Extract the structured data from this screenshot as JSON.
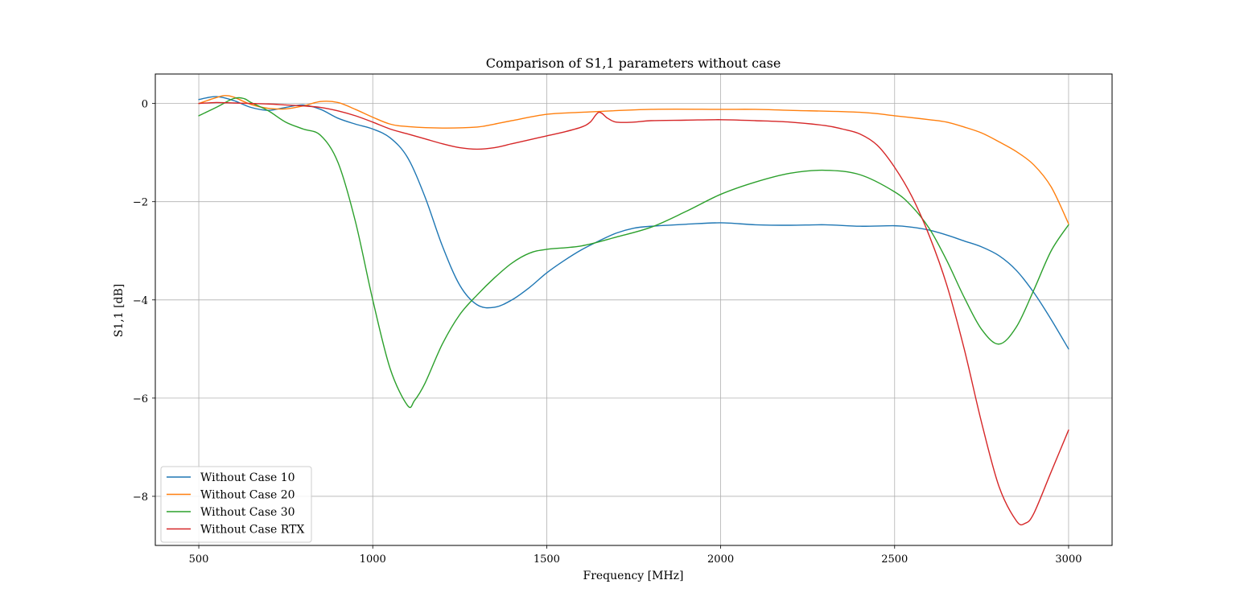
{
  "chart_data": {
    "type": "line",
    "title": "Comparison of S1,1 parameters without case",
    "xlabel": "Frequency [MHz]",
    "ylabel": "S1,1 [dB]",
    "xlim": [
      375,
      3125
    ],
    "ylim": [
      -9.0,
      0.6
    ],
    "xticks": [
      500,
      1000,
      1500,
      2000,
      2500,
      3000
    ],
    "yticks": [
      0,
      -2,
      -4,
      -6,
      -8
    ],
    "ytick_labels": [
      "0",
      "−2",
      "−4",
      "−6",
      "−8"
    ],
    "grid": true,
    "legend_position": "lower-left",
    "series": [
      {
        "name": "Without Case 10",
        "color": "#1f77b4",
        "x": [
          500,
          550,
          600,
          650,
          700,
          750,
          800,
          850,
          900,
          950,
          1000,
          1050,
          1100,
          1150,
          1200,
          1250,
          1300,
          1350,
          1400,
          1450,
          1500,
          1550,
          1600,
          1650,
          1700,
          1750,
          1800,
          1900,
          2000,
          2100,
          2200,
          2300,
          2400,
          2500,
          2550,
          2600,
          2650,
          2700,
          2750,
          2800,
          2850,
          2900,
          2950,
          3000
        ],
        "y": [
          0.08,
          0.14,
          0.06,
          -0.08,
          -0.14,
          -0.08,
          -0.03,
          -0.12,
          -0.3,
          -0.42,
          -0.52,
          -0.7,
          -1.1,
          -1.9,
          -2.9,
          -3.7,
          -4.1,
          -4.15,
          -4.0,
          -3.75,
          -3.45,
          -3.2,
          -2.98,
          -2.8,
          -2.64,
          -2.54,
          -2.5,
          -2.46,
          -2.43,
          -2.47,
          -2.48,
          -2.47,
          -2.5,
          -2.49,
          -2.52,
          -2.58,
          -2.68,
          -2.8,
          -2.92,
          -3.1,
          -3.4,
          -3.85,
          -4.4,
          -5.0
        ]
      },
      {
        "name": "Without Case 20",
        "color": "#ff7f0e",
        "x": [
          500,
          550,
          575,
          600,
          650,
          700,
          750,
          800,
          850,
          900,
          950,
          1000,
          1050,
          1100,
          1200,
          1300,
          1350,
          1400,
          1500,
          1600,
          1800,
          2000,
          2100,
          2200,
          2400,
          2500,
          2600,
          2650,
          2700,
          2750,
          2800,
          2850,
          2900,
          2950,
          3000
        ],
        "y": [
          0.0,
          0.12,
          0.16,
          0.13,
          -0.02,
          -0.1,
          -0.11,
          -0.05,
          0.04,
          0.02,
          -0.12,
          -0.28,
          -0.42,
          -0.47,
          -0.5,
          -0.48,
          -0.42,
          -0.35,
          -0.22,
          -0.18,
          -0.12,
          -0.12,
          -0.12,
          -0.14,
          -0.18,
          -0.25,
          -0.33,
          -0.38,
          -0.48,
          -0.6,
          -0.78,
          -0.98,
          -1.25,
          -1.7,
          -2.45
        ]
      },
      {
        "name": "Without Case 30",
        "color": "#2ca02c",
        "x": [
          500,
          550,
          600,
          630,
          650,
          700,
          750,
          800,
          850,
          900,
          950,
          1000,
          1050,
          1100,
          1120,
          1150,
          1200,
          1250,
          1300,
          1350,
          1400,
          1450,
          1500,
          1600,
          1700,
          1800,
          1900,
          2000,
          2100,
          2200,
          2300,
          2400,
          2500,
          2550,
          2600,
          2650,
          2700,
          2750,
          2800,
          2850,
          2900,
          2950,
          3000
        ],
        "y": [
          -0.25,
          -0.08,
          0.1,
          0.1,
          0.02,
          -0.15,
          -0.38,
          -0.52,
          -0.65,
          -1.2,
          -2.4,
          -4.0,
          -5.4,
          -6.15,
          -6.05,
          -5.7,
          -4.9,
          -4.3,
          -3.9,
          -3.55,
          -3.25,
          -3.05,
          -2.97,
          -2.9,
          -2.72,
          -2.52,
          -2.2,
          -1.85,
          -1.6,
          -1.42,
          -1.36,
          -1.45,
          -1.8,
          -2.1,
          -2.55,
          -3.2,
          -3.95,
          -4.6,
          -4.9,
          -4.55,
          -3.8,
          -3.0,
          -2.47
        ]
      },
      {
        "name": "Without Case RTX",
        "color": "#d62728",
        "x": [
          500,
          550,
          600,
          650,
          700,
          750,
          800,
          850,
          900,
          950,
          1000,
          1050,
          1100,
          1150,
          1200,
          1250,
          1300,
          1350,
          1400,
          1450,
          1500,
          1550,
          1600,
          1625,
          1650,
          1675,
          1700,
          1750,
          1800,
          1900,
          2000,
          2100,
          2200,
          2300,
          2350,
          2400,
          2450,
          2500,
          2550,
          2600,
          2650,
          2700,
          2750,
          2800,
          2850,
          2875,
          2900,
          2950,
          3000
        ],
        "y": [
          0.0,
          0.02,
          0.01,
          0.0,
          -0.01,
          -0.03,
          -0.05,
          -0.08,
          -0.15,
          -0.25,
          -0.38,
          -0.52,
          -0.62,
          -0.72,
          -0.82,
          -0.9,
          -0.93,
          -0.9,
          -0.82,
          -0.74,
          -0.66,
          -0.58,
          -0.48,
          -0.38,
          -0.18,
          -0.3,
          -0.38,
          -0.38,
          -0.35,
          -0.34,
          -0.33,
          -0.35,
          -0.38,
          -0.45,
          -0.52,
          -0.62,
          -0.85,
          -1.3,
          -1.9,
          -2.7,
          -3.7,
          -5.0,
          -6.5,
          -7.8,
          -8.5,
          -8.55,
          -8.35,
          -7.5,
          -6.65
        ]
      }
    ]
  }
}
